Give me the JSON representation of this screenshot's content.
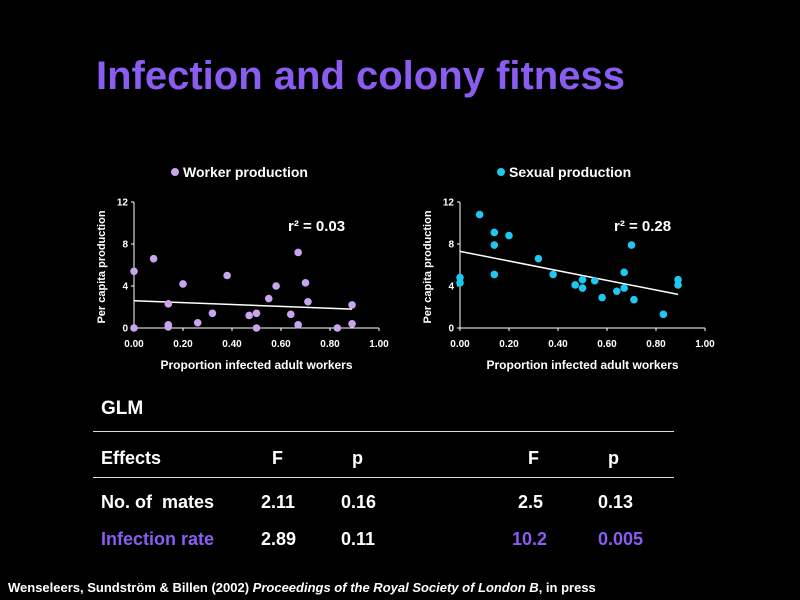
{
  "slide": {
    "title": "Infection and colony fitness",
    "citation": {
      "authors": "Wenseleers, Sundström & Billen (2002) ",
      "journal": "Proceedings of the Royal Society of London B",
      "suffix": ", in press"
    },
    "accent_color": "#8a5cf0"
  },
  "chart_data": [
    {
      "type": "scatter",
      "legend": "Worker production",
      "legend_placement": "top",
      "xlabel": "Proportion infected adult workers",
      "ylabel": "Per capita production",
      "xlim": [
        0,
        1
      ],
      "ylim": [
        0,
        12
      ],
      "xticks": [
        "0.00",
        "0.20",
        "0.40",
        "0.60",
        "0.80",
        "1.00"
      ],
      "yticks": [
        "0",
        "4",
        "8",
        "12"
      ],
      "annotation": "r² = 0.03",
      "color": "#c9a5ee",
      "trendline": [
        [
          0.0,
          2.6
        ],
        [
          0.89,
          1.8
        ]
      ],
      "points": [
        [
          0.0,
          5.4
        ],
        [
          0.0,
          0.0
        ],
        [
          0.08,
          6.6
        ],
        [
          0.14,
          2.3
        ],
        [
          0.14,
          0.3
        ],
        [
          0.14,
          0.1
        ],
        [
          0.2,
          4.2
        ],
        [
          0.26,
          0.5
        ],
        [
          0.32,
          1.4
        ],
        [
          0.38,
          5.0
        ],
        [
          0.47,
          1.2
        ],
        [
          0.5,
          1.4
        ],
        [
          0.5,
          0.0
        ],
        [
          0.55,
          2.8
        ],
        [
          0.58,
          4.0
        ],
        [
          0.64,
          1.3
        ],
        [
          0.67,
          7.2
        ],
        [
          0.67,
          0.3
        ],
        [
          0.7,
          4.3
        ],
        [
          0.71,
          2.5
        ],
        [
          0.83,
          0.0
        ],
        [
          0.89,
          2.2
        ],
        [
          0.89,
          0.4
        ]
      ]
    },
    {
      "type": "scatter",
      "legend": "Sexual production",
      "legend_placement": "top",
      "xlabel": "Proportion infected adult workers",
      "ylabel": "Per capita production",
      "xlim": [
        0,
        1
      ],
      "ylim": [
        0,
        12
      ],
      "xticks": [
        "0.00",
        "0.20",
        "0.40",
        "0.60",
        "0.80",
        "1.00"
      ],
      "yticks": [
        "0",
        "4",
        "8",
        "12"
      ],
      "annotation": "r² = 0.28",
      "color": "#1ec8f0",
      "trendline": [
        [
          0.0,
          7.3
        ],
        [
          0.89,
          3.2
        ]
      ],
      "points": [
        [
          0.0,
          4.8
        ],
        [
          0.0,
          4.3
        ],
        [
          0.08,
          10.8
        ],
        [
          0.14,
          9.1
        ],
        [
          0.14,
          7.9
        ],
        [
          0.14,
          5.1
        ],
        [
          0.2,
          8.8
        ],
        [
          0.32,
          6.6
        ],
        [
          0.38,
          5.1
        ],
        [
          0.47,
          4.1
        ],
        [
          0.5,
          4.6
        ],
        [
          0.5,
          3.8
        ],
        [
          0.55,
          4.5
        ],
        [
          0.58,
          2.9
        ],
        [
          0.64,
          3.5
        ],
        [
          0.67,
          5.3
        ],
        [
          0.67,
          3.8
        ],
        [
          0.7,
          7.9
        ],
        [
          0.71,
          2.7
        ],
        [
          0.83,
          1.3
        ],
        [
          0.89,
          4.6
        ],
        [
          0.89,
          4.1
        ]
      ]
    }
  ],
  "glm_table": {
    "label": "GLM",
    "headers": [
      "Effects",
      "F",
      "p",
      "F",
      "p"
    ],
    "rows": [
      {
        "effect": "No. of  mates",
        "F1": "2.11",
        "p1": "0.16",
        "F2": "2.5",
        "p2": "0.13"
      },
      {
        "effect": "Infection rate",
        "F1": "2.89",
        "p1": "0.11",
        "F2": "10.2",
        "p2": "0.005"
      }
    ]
  }
}
